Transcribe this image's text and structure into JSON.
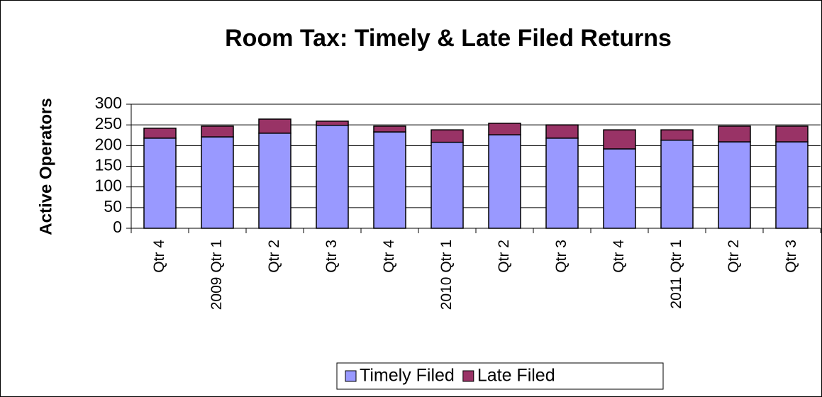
{
  "chart_data": {
    "type": "bar",
    "stacked": true,
    "title": "Room Tax: Timely & Late Filed Returns",
    "y_label": "Active Operators",
    "categories": [
      "Qtr 4",
      "2009 Qtr 1",
      "Qtr 2",
      "Qtr 3",
      "Qtr 4",
      "2010 Qtr 1",
      "Qtr 2",
      "Qtr 3",
      "Qtr 4",
      "2011 Qtr 1",
      "Qtr 2",
      "Qtr 3"
    ],
    "series": [
      {
        "name": "Timely Filed",
        "color": "#9999ff",
        "values": [
          218,
          221,
          230,
          249,
          233,
          208,
          226,
          218,
          192,
          213,
          209,
          209
        ]
      },
      {
        "name": "Late Filed",
        "color": "#993366",
        "values": [
          24,
          26,
          34,
          10,
          14,
          30,
          28,
          32,
          46,
          25,
          38,
          38
        ]
      }
    ],
    "ylim": [
      0,
      300
    ],
    "yticks": [
      0,
      50,
      100,
      150,
      200,
      250,
      300
    ],
    "grid": true,
    "legend": "bottom"
  }
}
